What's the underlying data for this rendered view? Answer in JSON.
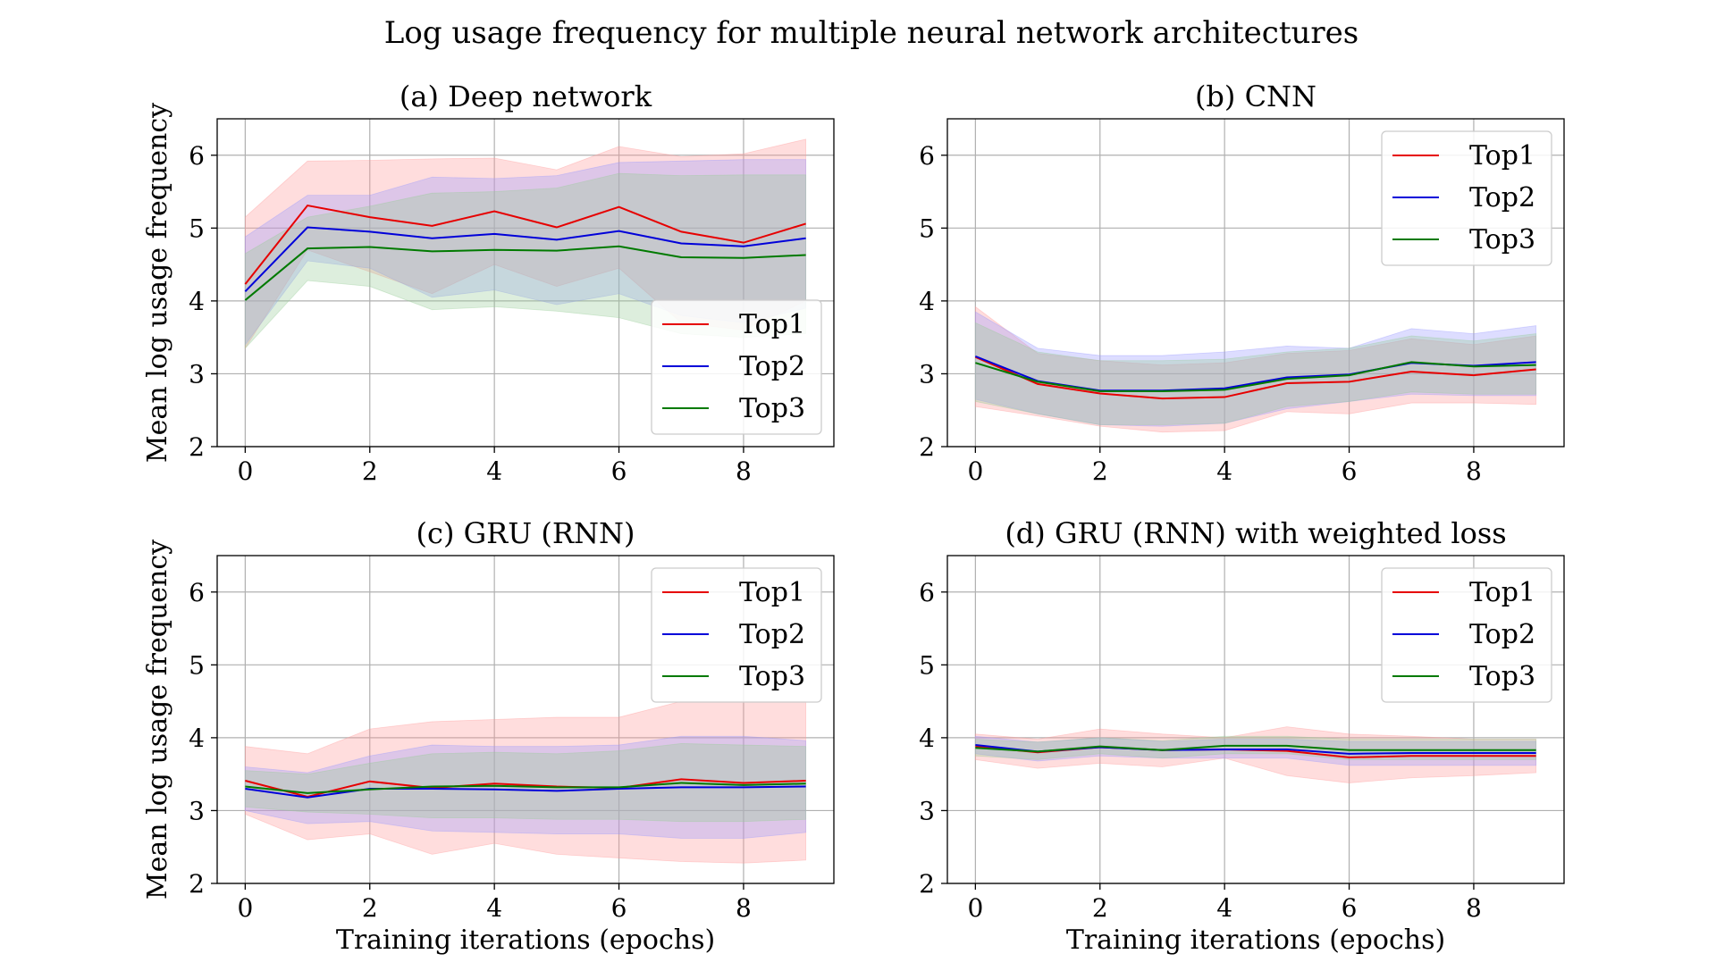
{
  "figure": {
    "title": "Log usage frequency for multiple neural network architectures"
  },
  "colors": {
    "Top1": "#e60000",
    "Top2": "#0000d9",
    "Top3": "#007a00",
    "band_Top1": "#ff9999",
    "band_Top2": "#9999ff",
    "band_Top3": "#99cc99"
  },
  "chart_data": [
    {
      "type": "line",
      "title": "(a) Deep network",
      "xlabel": "",
      "ylabel": "Mean log usage frequency",
      "xlim": [
        -0.45,
        9.45
      ],
      "ylim": [
        2,
        6.5
      ],
      "xticks": [
        0,
        2,
        4,
        6,
        8
      ],
      "yticks": [
        2,
        3,
        4,
        5,
        6
      ],
      "grid": true,
      "legend": "lower-right",
      "x": [
        0,
        1,
        2,
        3,
        4,
        5,
        6,
        7,
        8,
        9
      ],
      "series": [
        {
          "name": "Top1",
          "values": [
            4.23,
            5.31,
            5.15,
            5.03,
            5.23,
            5.01,
            5.29,
            4.95,
            4.8,
            5.06
          ],
          "lower": [
            3.35,
            4.7,
            4.4,
            4.1,
            4.5,
            4.2,
            4.45,
            3.7,
            3.6,
            4.0
          ],
          "upper": [
            5.15,
            5.92,
            5.93,
            5.95,
            5.96,
            5.8,
            6.12,
            5.98,
            6.02,
            6.22
          ]
        },
        {
          "name": "Top2",
          "values": [
            4.13,
            5.01,
            4.95,
            4.86,
            4.92,
            4.84,
            4.96,
            4.79,
            4.75,
            4.86
          ],
          "lower": [
            3.4,
            4.55,
            4.45,
            4.05,
            4.15,
            3.95,
            4.1,
            3.8,
            3.7,
            3.9
          ],
          "upper": [
            4.88,
            5.45,
            5.45,
            5.7,
            5.68,
            5.72,
            5.9,
            5.92,
            5.94,
            5.94
          ]
        },
        {
          "name": "Top3",
          "values": [
            4.01,
            4.72,
            4.74,
            4.68,
            4.7,
            4.69,
            4.75,
            4.6,
            4.59,
            4.63
          ],
          "lower": [
            3.35,
            4.28,
            4.2,
            3.88,
            3.92,
            3.86,
            3.77,
            3.55,
            3.5,
            3.55
          ],
          "upper": [
            4.65,
            5.15,
            5.3,
            5.48,
            5.5,
            5.55,
            5.75,
            5.72,
            5.73,
            5.73
          ]
        }
      ]
    },
    {
      "type": "line",
      "title": "(b) CNN",
      "xlabel": "",
      "ylabel": "",
      "xlim": [
        -0.45,
        9.45
      ],
      "ylim": [
        2,
        6.5
      ],
      "xticks": [
        0,
        2,
        4,
        6,
        8
      ],
      "yticks": [
        2,
        3,
        4,
        5,
        6
      ],
      "grid": true,
      "legend": "upper-right",
      "x": [
        0,
        1,
        2,
        3,
        4,
        5,
        6,
        7,
        8,
        9
      ],
      "series": [
        {
          "name": "Top1",
          "values": [
            3.23,
            2.86,
            2.73,
            2.66,
            2.68,
            2.87,
            2.89,
            3.03,
            2.98,
            3.06
          ],
          "lower": [
            2.55,
            2.42,
            2.28,
            2.2,
            2.22,
            2.48,
            2.45,
            2.6,
            2.6,
            2.58
          ],
          "upper": [
            3.92,
            3.28,
            3.18,
            3.12,
            3.15,
            3.28,
            3.32,
            3.48,
            3.4,
            3.52
          ]
        },
        {
          "name": "Top2",
          "values": [
            3.24,
            2.9,
            2.77,
            2.77,
            2.8,
            2.95,
            2.99,
            3.15,
            3.11,
            3.16
          ],
          "lower": [
            2.65,
            2.45,
            2.3,
            2.28,
            2.32,
            2.52,
            2.62,
            2.72,
            2.7,
            2.7
          ],
          "upper": [
            3.85,
            3.35,
            3.25,
            3.25,
            3.3,
            3.38,
            3.35,
            3.62,
            3.55,
            3.66
          ]
        },
        {
          "name": "Top3",
          "values": [
            3.15,
            2.89,
            2.76,
            2.76,
            2.78,
            2.93,
            2.98,
            3.16,
            3.1,
            3.12
          ],
          "lower": [
            2.62,
            2.45,
            2.3,
            2.3,
            2.32,
            2.55,
            2.62,
            2.75,
            2.72,
            2.72
          ],
          "upper": [
            3.7,
            3.3,
            3.18,
            3.18,
            3.2,
            3.3,
            3.35,
            3.52,
            3.45,
            3.55
          ]
        }
      ]
    },
    {
      "type": "line",
      "title": "(c) GRU (RNN)",
      "xlabel": "Training iterations (epochs)",
      "ylabel": "Mean log usage frequency",
      "xlim": [
        -0.45,
        9.45
      ],
      "ylim": [
        2,
        6.5
      ],
      "xticks": [
        0,
        2,
        4,
        6,
        8
      ],
      "yticks": [
        2,
        3,
        4,
        5,
        6
      ],
      "grid": true,
      "legend": "upper-right",
      "x": [
        0,
        1,
        2,
        3,
        4,
        5,
        6,
        7,
        8,
        9
      ],
      "series": [
        {
          "name": "Top1",
          "values": [
            3.41,
            3.19,
            3.4,
            3.31,
            3.37,
            3.33,
            3.31,
            3.43,
            3.38,
            3.41
          ],
          "lower": [
            2.95,
            2.6,
            2.68,
            2.4,
            2.55,
            2.4,
            2.35,
            2.3,
            2.28,
            2.32
          ],
          "upper": [
            3.88,
            3.78,
            4.12,
            4.22,
            4.25,
            4.28,
            4.28,
            4.5,
            4.5,
            4.5
          ]
        },
        {
          "name": "Top2",
          "values": [
            3.3,
            3.18,
            3.3,
            3.3,
            3.29,
            3.27,
            3.3,
            3.32,
            3.32,
            3.33
          ],
          "lower": [
            3.0,
            2.82,
            2.85,
            2.72,
            2.7,
            2.68,
            2.68,
            2.62,
            2.62,
            2.7
          ],
          "upper": [
            3.6,
            3.52,
            3.75,
            3.9,
            3.88,
            3.88,
            3.9,
            4.02,
            4.02,
            3.96
          ]
        },
        {
          "name": "Top3",
          "values": [
            3.33,
            3.24,
            3.29,
            3.33,
            3.34,
            3.32,
            3.32,
            3.38,
            3.35,
            3.37
          ],
          "lower": [
            3.05,
            2.98,
            2.95,
            2.9,
            2.9,
            2.88,
            2.88,
            2.85,
            2.85,
            2.88
          ],
          "upper": [
            3.55,
            3.5,
            3.65,
            3.78,
            3.8,
            3.78,
            3.82,
            3.92,
            3.9,
            3.88
          ]
        }
      ]
    },
    {
      "type": "line",
      "title": "(d) GRU (RNN) with weighted loss",
      "xlabel": "Training iterations (epochs)",
      "ylabel": "",
      "xlim": [
        -0.45,
        9.45
      ],
      "ylim": [
        2,
        6.5
      ],
      "xticks": [
        0,
        2,
        4,
        6,
        8
      ],
      "yticks": [
        2,
        3,
        4,
        5,
        6
      ],
      "grid": true,
      "legend": "upper-right",
      "x": [
        0,
        1,
        2,
        3,
        4,
        5,
        6,
        7,
        8,
        9
      ],
      "series": [
        {
          "name": "Top1",
          "values": [
            3.88,
            3.8,
            3.87,
            3.83,
            3.84,
            3.82,
            3.73,
            3.75,
            3.75,
            3.75
          ],
          "lower": [
            3.7,
            3.58,
            3.65,
            3.6,
            3.72,
            3.48,
            3.38,
            3.45,
            3.48,
            3.52
          ],
          "upper": [
            4.05,
            3.98,
            4.12,
            4.05,
            4.0,
            4.15,
            4.05,
            4.02,
            3.98,
            3.98
          ]
        },
        {
          "name": "Top2",
          "values": [
            3.9,
            3.81,
            3.87,
            3.83,
            3.84,
            3.84,
            3.78,
            3.79,
            3.79,
            3.79
          ],
          "lower": [
            3.78,
            3.68,
            3.75,
            3.72,
            3.72,
            3.72,
            3.62,
            3.62,
            3.62,
            3.62
          ],
          "upper": [
            4.02,
            3.94,
            4.0,
            3.95,
            3.98,
            3.98,
            3.95,
            3.95,
            3.95,
            3.95
          ]
        },
        {
          "name": "Top3",
          "values": [
            3.86,
            3.81,
            3.88,
            3.83,
            3.89,
            3.89,
            3.83,
            3.83,
            3.83,
            3.83
          ],
          "lower": [
            3.75,
            3.7,
            3.78,
            3.72,
            3.78,
            3.78,
            3.7,
            3.7,
            3.7,
            3.7
          ],
          "upper": [
            3.98,
            3.94,
            4.0,
            3.96,
            4.02,
            4.02,
            3.98,
            3.98,
            3.98,
            3.98
          ]
        }
      ]
    }
  ]
}
